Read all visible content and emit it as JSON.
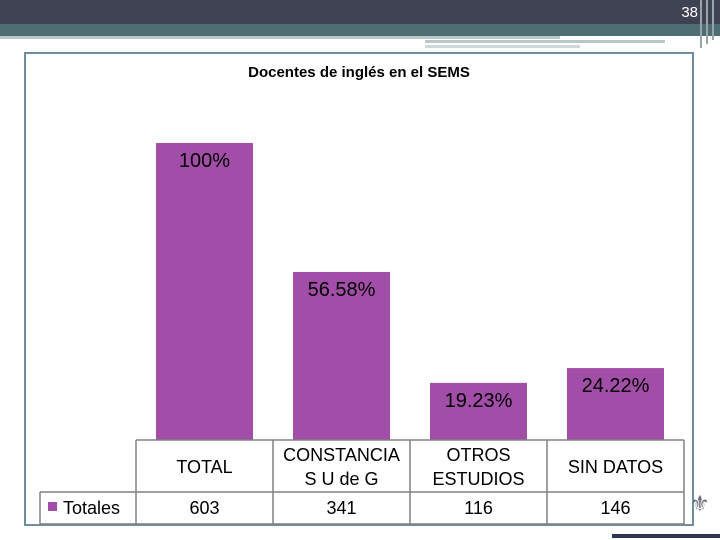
{
  "slide": {
    "page_number": "38"
  },
  "colors": {
    "bar": "#a24ea8",
    "header": "#3f4253",
    "frame": "#6f8d9c"
  },
  "chart_data": {
    "type": "bar",
    "title": "Docentes de inglés en el SEMS",
    "categories": [
      "TOTAL",
      "CONSTANCIA S U de G",
      "OTROS ESTUDIOS",
      "SIN DATOS"
    ],
    "category_lines": [
      [
        "TOTAL"
      ],
      [
        "CONSTANCIA",
        "S U de G"
      ],
      [
        "OTROS",
        "ESTUDIOS"
      ],
      [
        "SIN DATOS"
      ]
    ],
    "values": [
      100,
      56.58,
      19.23,
      24.22
    ],
    "data_labels": [
      "100%",
      "56.58%",
      "19.23%",
      "24.22%"
    ],
    "ylim": [
      0,
      100
    ],
    "legend": {
      "position": "table-left"
    },
    "data_table": {
      "series_name": "Totales",
      "values": [
        "603",
        "341",
        "116",
        "146"
      ]
    },
    "grid": false
  }
}
